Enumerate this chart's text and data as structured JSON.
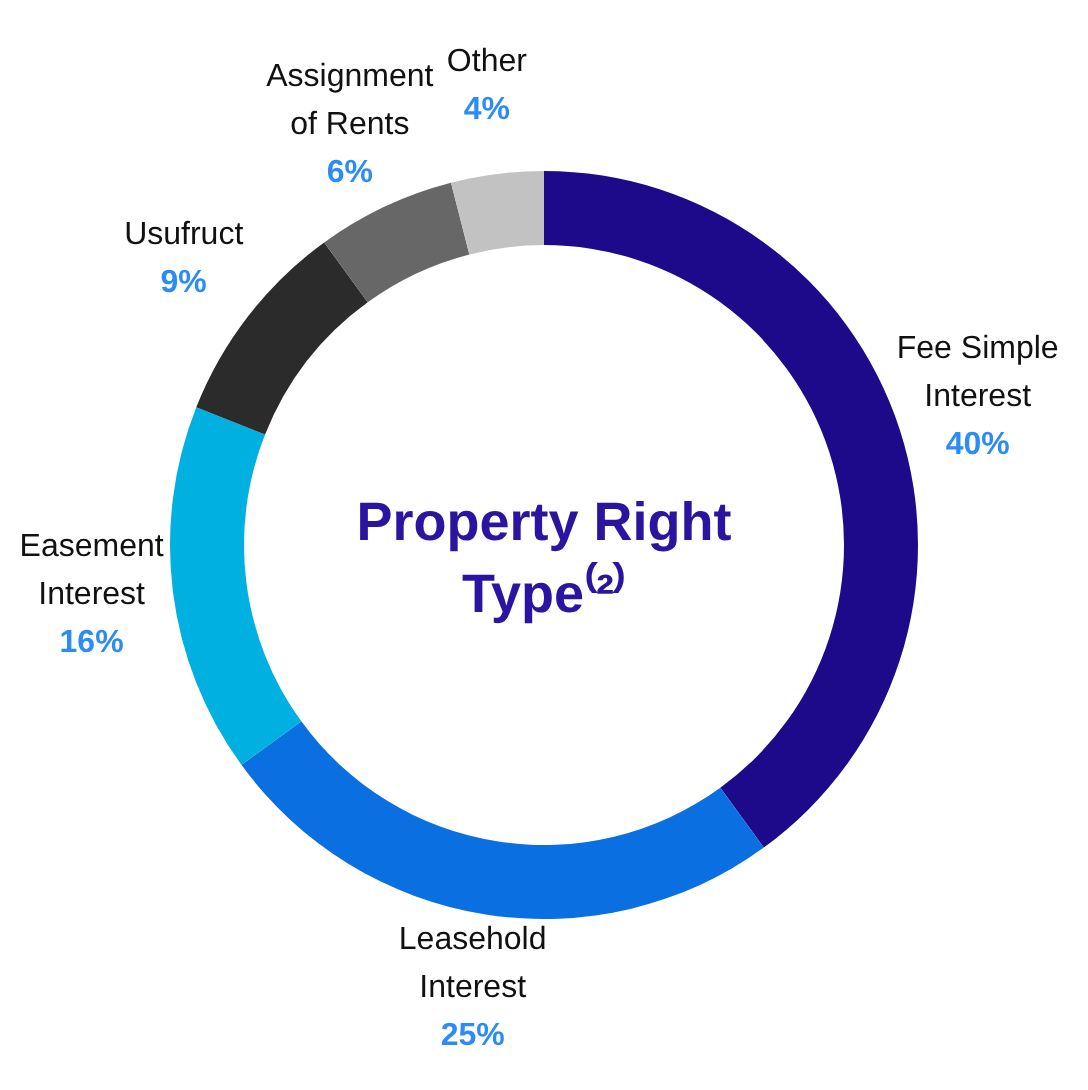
{
  "chart_data": {
    "type": "donut",
    "title": "Property Right Type⁽²⁾",
    "categories": [
      "Fee Simple Interest",
      "Leasehold Interest",
      "Easement Interest",
      "Usufruct",
      "Assignment of Rents",
      "Other"
    ],
    "values": [
      40,
      25,
      16,
      9,
      6,
      4
    ],
    "colors": [
      "#1c0a8a",
      "#0a6fe0",
      "#00b0e0",
      "#2b2b2b",
      "#676767",
      "#c2c2c2"
    ],
    "value_labels": [
      "40%",
      "25%",
      "16%",
      "9%",
      "6%",
      "4%"
    ]
  }
}
